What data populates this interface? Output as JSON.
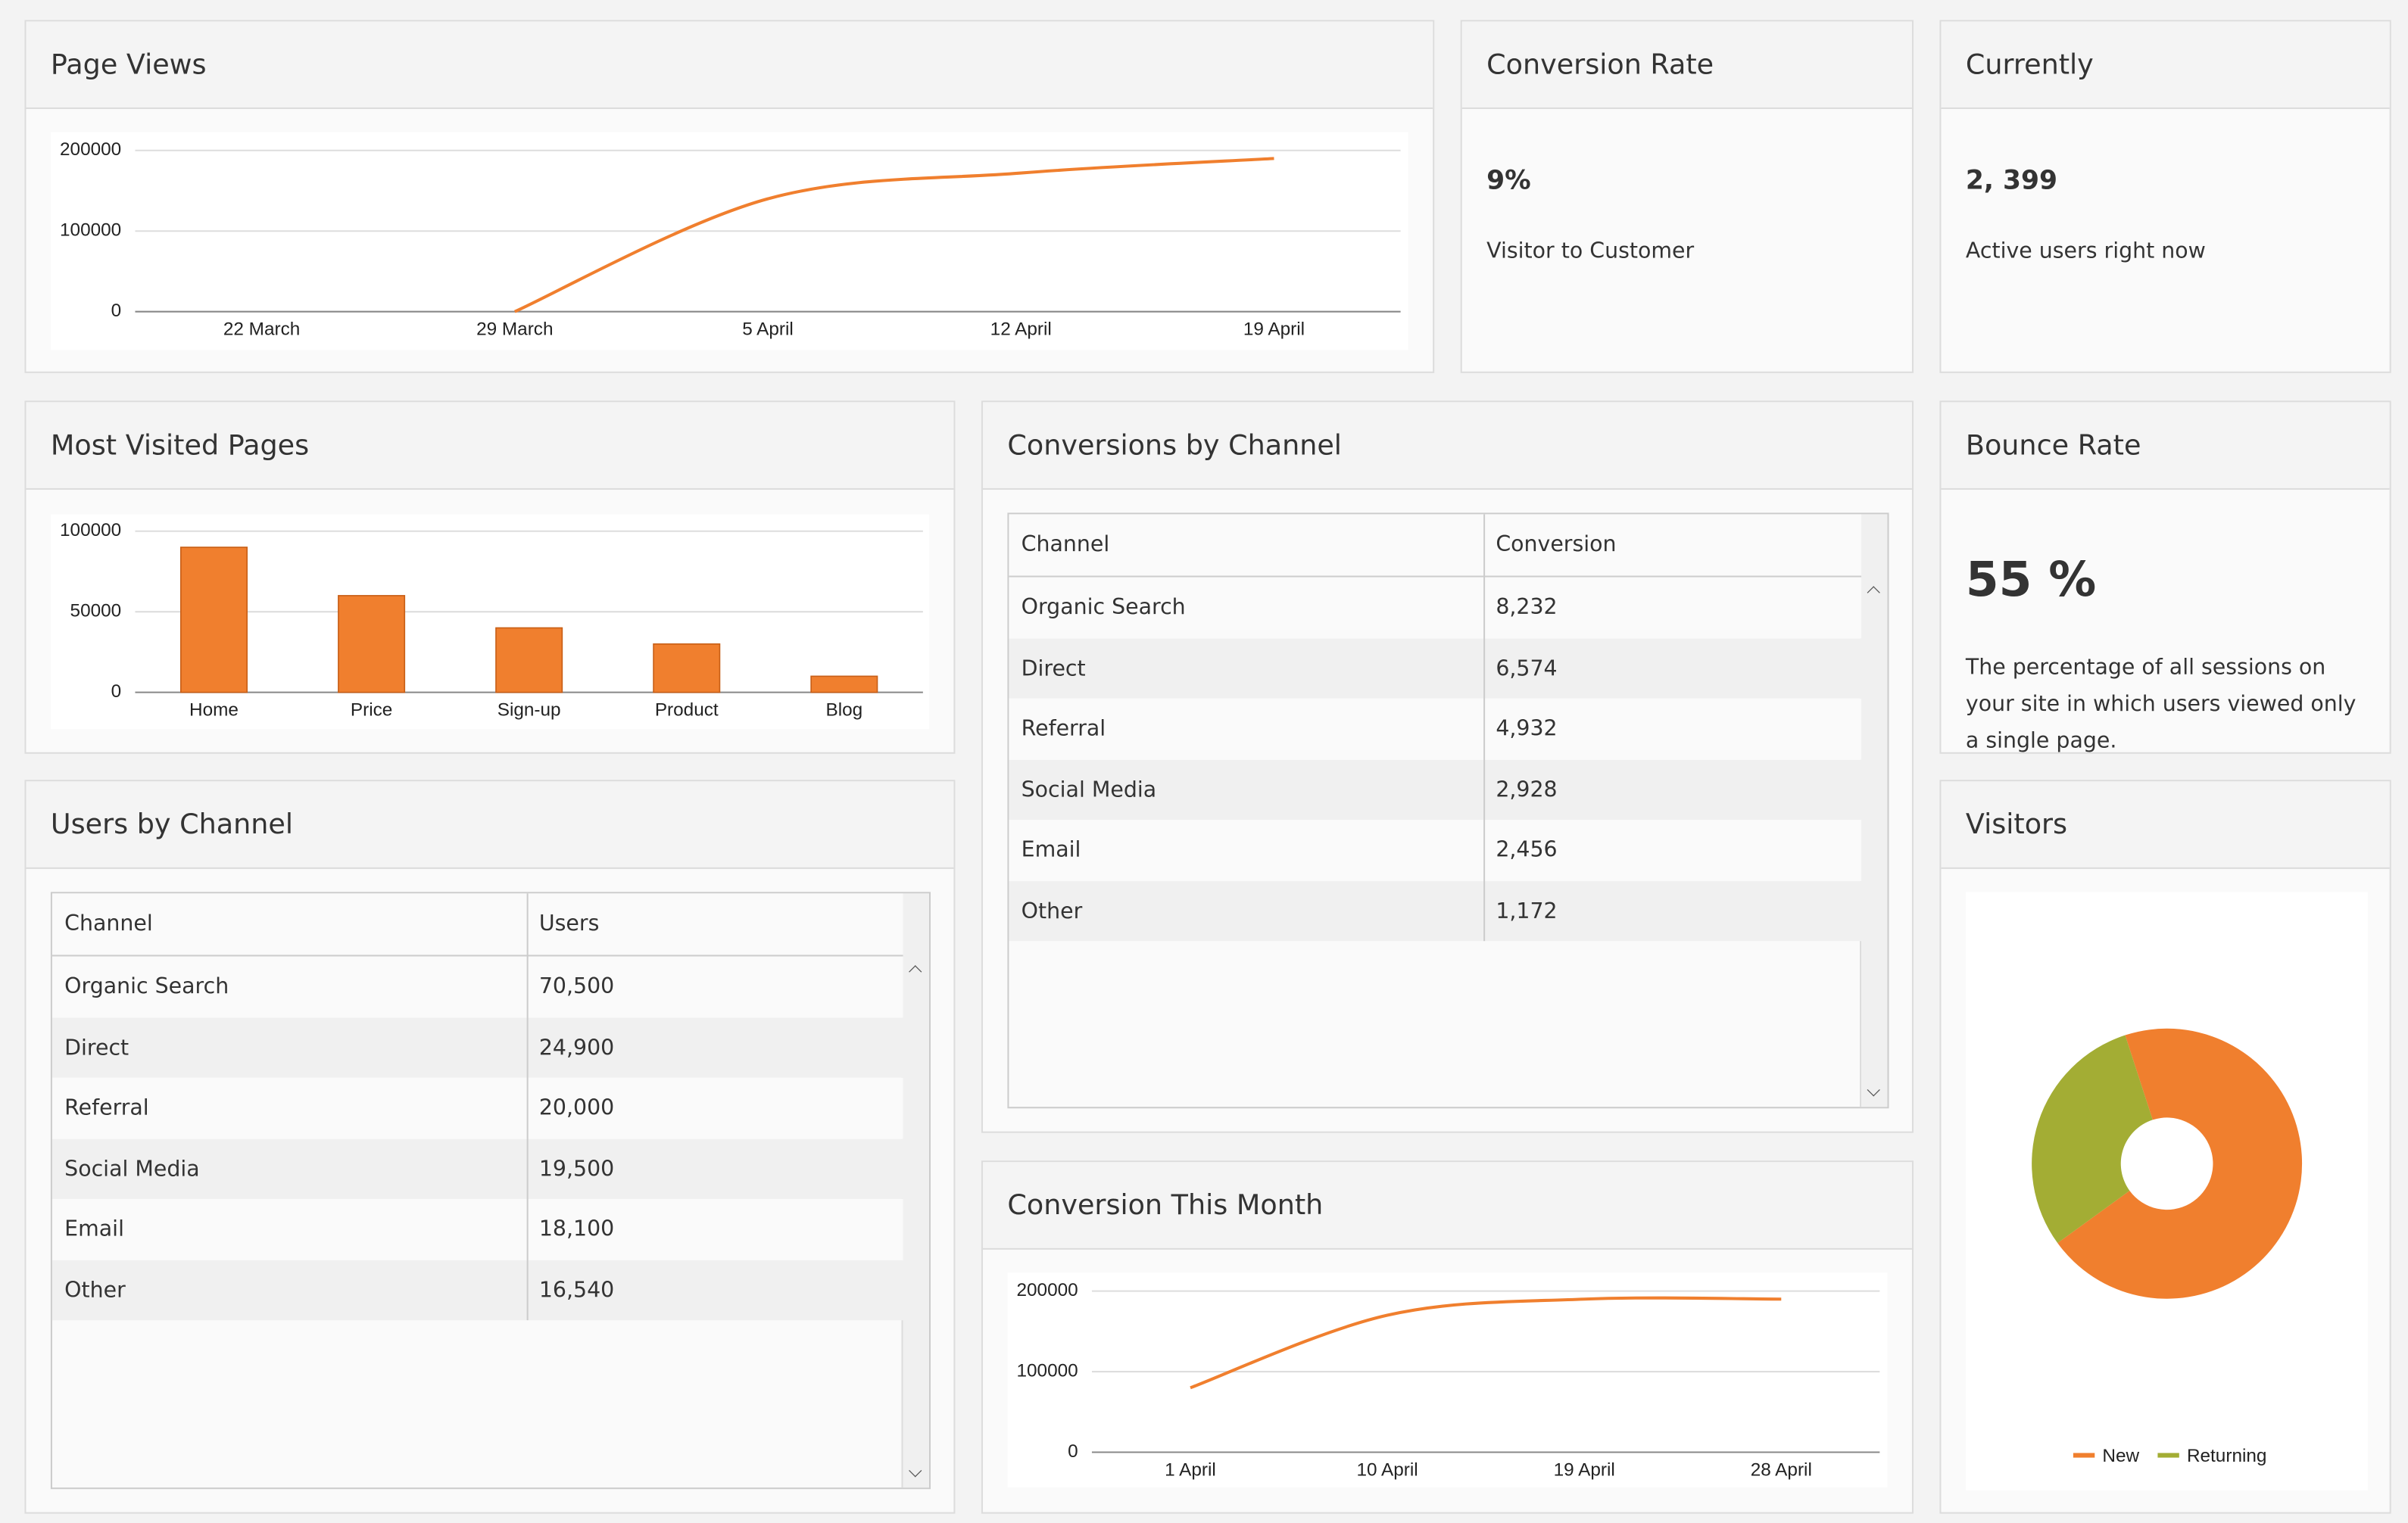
{
  "page_views": {
    "title": "Page Views",
    "type": "line",
    "x": [
      "22 March",
      "29 March",
      "5 April",
      "12 April",
      "19 April"
    ],
    "values": [
      null,
      0,
      140000,
      172000,
      190000
    ],
    "ylim": [
      0,
      200000
    ],
    "yticks": [
      0,
      100000,
      200000
    ],
    "color": "#f07f2e",
    "grid": true
  },
  "conversion_rate": {
    "title": "Conversion Rate",
    "value": "9%",
    "caption": "Visitor to Customer"
  },
  "currently": {
    "title": "Currently",
    "value": "2, 399",
    "caption": "Active users right now"
  },
  "most_visited_pages": {
    "title": "Most Visited Pages",
    "type": "bar",
    "categories": [
      "Home",
      "Price",
      "Sign-up",
      "Product",
      "Blog"
    ],
    "values": [
      90000,
      60000,
      40000,
      30000,
      10000
    ],
    "ylim": [
      0,
      100000
    ],
    "yticks": [
      0,
      50000,
      100000
    ],
    "color": "#f07f2e",
    "grid": true
  },
  "conversions_by_channel": {
    "title": "Conversions by Channel",
    "table": {
      "columns": [
        "Channel",
        "Conversion"
      ],
      "rows": [
        [
          "Organic Search",
          "8,232"
        ],
        [
          "Direct",
          "6,574"
        ],
        [
          "Referral",
          "4,932"
        ],
        [
          "Social Media",
          "2,928"
        ],
        [
          "Email",
          "2,456"
        ],
        [
          "Other",
          "1,172"
        ]
      ]
    }
  },
  "bounce_rate": {
    "title": "Bounce Rate",
    "value": "55 %",
    "caption": "The percentage of all sessions on your site in which users viewed only a single page."
  },
  "users_by_channel": {
    "title": "Users by Channel",
    "table": {
      "columns": [
        "Channel",
        "Users"
      ],
      "rows": [
        [
          "Organic Search",
          "70,500"
        ],
        [
          "Direct",
          "24,900"
        ],
        [
          "Referral",
          "20,000"
        ],
        [
          "Social Media",
          "19,500"
        ],
        [
          "Email",
          "18,100"
        ],
        [
          "Other",
          "16,540"
        ]
      ]
    }
  },
  "conversion_this_month": {
    "title": "Conversion This Month",
    "type": "line",
    "x": [
      "1 April",
      "10 April",
      "19 April",
      "28 April"
    ],
    "values": [
      80000,
      170000,
      190000,
      190000
    ],
    "ylim": [
      0,
      200000
    ],
    "yticks": [
      0,
      100000,
      200000
    ],
    "color": "#f07f2e",
    "grid": true
  },
  "visitors": {
    "title": "Visitors",
    "type": "donut",
    "series": [
      {
        "name": "New",
        "color": "#f07f2e",
        "value": 70
      },
      {
        "name": "Returning",
        "color": "#a3ad34",
        "value": 30
      }
    ]
  }
}
